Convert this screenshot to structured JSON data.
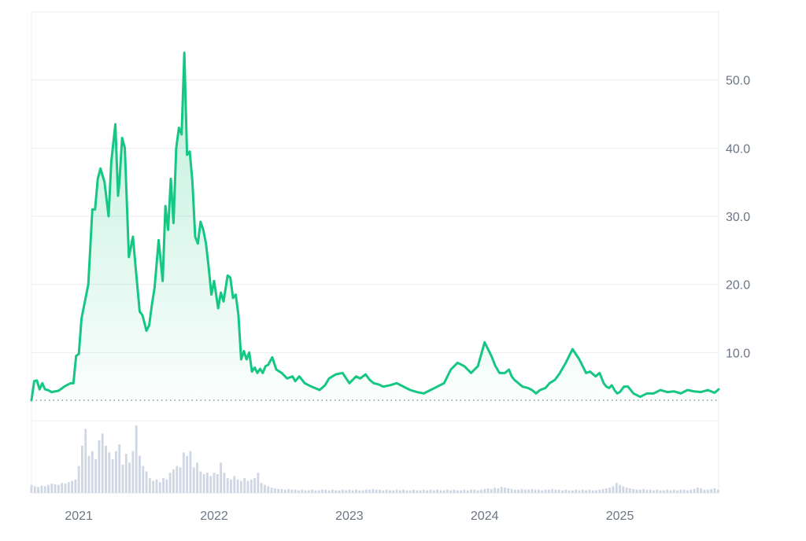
{
  "chart_data": {
    "type": "area",
    "title": "",
    "xlabel": "",
    "ylabel": "",
    "colors": {
      "line": "#16c784",
      "fill": "#16c784",
      "grid": "#e9ecf1",
      "volume": "#cfd6e4",
      "baseline": "#7a8090"
    },
    "ylim": [
      0,
      60
    ],
    "y_ticks": [
      {
        "value": 10,
        "label": "10.0"
      },
      {
        "value": 20,
        "label": "20.0"
      },
      {
        "value": 30,
        "label": "30.0"
      },
      {
        "value": 40,
        "label": "40.0"
      },
      {
        "value": 50,
        "label": "50.0"
      }
    ],
    "x_range": [
      2020.65,
      2025.73
    ],
    "x_ticks": [
      {
        "value": 2021.0,
        "label": "2021"
      },
      {
        "value": 2022.0,
        "label": "2022"
      },
      {
        "value": 2023.0,
        "label": "2023"
      },
      {
        "value": 2024.0,
        "label": "2024"
      },
      {
        "value": 2025.0,
        "label": "2025"
      }
    ],
    "reference_line": {
      "value": 3.0,
      "style": "dotted"
    },
    "grid": true,
    "legend": "none",
    "price": {
      "x": [
        2020.65,
        2020.67,
        2020.69,
        2020.71,
        2020.73,
        2020.75,
        2020.77,
        2020.8,
        2020.85,
        2020.9,
        2020.94,
        2020.96,
        2020.98,
        2021.0,
        2021.02,
        2021.04,
        2021.07,
        2021.1,
        2021.12,
        2021.14,
        2021.16,
        2021.19,
        2021.22,
        2021.24,
        2021.27,
        2021.29,
        2021.3,
        2021.32,
        2021.34,
        2021.37,
        2021.4,
        2021.42,
        2021.45,
        2021.47,
        2021.5,
        2021.52,
        2021.54,
        2021.56,
        2021.59,
        2021.62,
        2021.64,
        2021.66,
        2021.68,
        2021.7,
        2021.72,
        2021.74,
        2021.76,
        2021.78,
        2021.8,
        2021.82,
        2021.84,
        2021.86,
        2021.88,
        2021.9,
        2021.92,
        2021.94,
        2021.96,
        2021.98,
        2022.0,
        2022.03,
        2022.05,
        2022.07,
        2022.1,
        2022.12,
        2022.14,
        2022.16,
        2022.18,
        2022.2,
        2022.22,
        2022.24,
        2022.26,
        2022.28,
        2022.3,
        2022.32,
        2022.34,
        2022.36,
        2022.38,
        2022.4,
        2022.43,
        2022.46,
        2022.5,
        2022.54,
        2022.58,
        2022.6,
        2022.63,
        2022.67,
        2022.72,
        2022.78,
        2022.82,
        2022.85,
        2022.9,
        2022.95,
        2023.0,
        2023.05,
        2023.08,
        2023.12,
        2023.15,
        2023.18,
        2023.22,
        2023.25,
        2023.3,
        2023.35,
        2023.4,
        2023.45,
        2023.5,
        2023.55,
        2023.6,
        2023.65,
        2023.7,
        2023.75,
        2023.8,
        2023.85,
        2023.9,
        2023.95,
        2024.0,
        2024.05,
        2024.08,
        2024.11,
        2024.15,
        2024.18,
        2024.2,
        2024.22,
        2024.25,
        2024.28,
        2024.32,
        2024.35,
        2024.38,
        2024.41,
        2024.45,
        2024.48,
        2024.52,
        2024.55,
        2024.6,
        2024.65,
        2024.7,
        2024.75,
        2024.78,
        2024.82,
        2024.85,
        2024.88,
        2024.9,
        2024.92,
        2024.94,
        2024.96,
        2024.98,
        2025.0,
        2025.03,
        2025.06,
        2025.1,
        2025.15,
        2025.2,
        2025.25,
        2025.3,
        2025.35,
        2025.4,
        2025.45,
        2025.5,
        2025.55,
        2025.6,
        2025.65,
        2025.7,
        2025.73
      ],
      "y": [
        3.0,
        5.8,
        5.9,
        4.6,
        5.5,
        4.6,
        4.5,
        4.2,
        4.4,
        5.1,
        5.5,
        5.5,
        9.5,
        9.8,
        15.0,
        17.0,
        20.0,
        31.0,
        31.0,
        35.5,
        37.0,
        35.0,
        30.0,
        38.0,
        43.5,
        33.0,
        35.0,
        41.5,
        40.0,
        24.0,
        27.0,
        22.5,
        16.0,
        15.5,
        13.2,
        14.0,
        17.0,
        19.5,
        26.5,
        20.5,
        31.5,
        28.0,
        35.5,
        29.0,
        40.0,
        43.0,
        42.0,
        54.0,
        39.0,
        39.5,
        35.0,
        27.0,
        26.0,
        29.2,
        28.0,
        26.0,
        22.5,
        18.5,
        20.5,
        16.5,
        18.8,
        17.5,
        21.3,
        21.0,
        18.0,
        18.5,
        15.5,
        9.0,
        10.2,
        9.0,
        10.0,
        7.2,
        7.8,
        7.0,
        7.6,
        7.0,
        8.0,
        8.2,
        9.3,
        7.5,
        7.0,
        6.2,
        6.5,
        5.8,
        6.5,
        5.5,
        5.0,
        4.5,
        5.2,
        6.2,
        6.8,
        7.0,
        5.5,
        6.5,
        6.2,
        6.8,
        6.0,
        5.5,
        5.3,
        5.0,
        5.2,
        5.5,
        5.0,
        4.5,
        4.2,
        4.0,
        4.5,
        5.0,
        5.5,
        7.5,
        8.5,
        8.0,
        7.0,
        8.0,
        11.5,
        9.5,
        8.0,
        7.0,
        7.0,
        7.5,
        6.5,
        6.0,
        5.5,
        5.0,
        4.8,
        4.5,
        4.0,
        4.5,
        4.8,
        5.5,
        6.0,
        6.8,
        8.5,
        10.5,
        9.0,
        7.0,
        7.2,
        6.5,
        7.0,
        5.5,
        5.0,
        4.8,
        5.2,
        4.5,
        4.0,
        4.2,
        5.0,
        5.0,
        4.0,
        3.5,
        4.0,
        4.0,
        4.5,
        4.2,
        4.3,
        4.0,
        4.5,
        4.3,
        4.2,
        4.5,
        4.1,
        4.6
      ]
    },
    "volume": {
      "x": [
        2020.65,
        2020.675,
        2020.7,
        2020.725,
        2020.75,
        2020.775,
        2020.8,
        2020.825,
        2020.85,
        2020.875,
        2020.9,
        2020.925,
        2020.95,
        2020.975,
        2021.0,
        2021.025,
        2021.05,
        2021.075,
        2021.1,
        2021.125,
        2021.15,
        2021.175,
        2021.2,
        2021.225,
        2021.25,
        2021.275,
        2021.3,
        2021.325,
        2021.35,
        2021.375,
        2021.4,
        2021.425,
        2021.45,
        2021.475,
        2021.5,
        2021.525,
        2021.55,
        2021.575,
        2021.6,
        2021.625,
        2021.65,
        2021.675,
        2021.7,
        2021.725,
        2021.75,
        2021.775,
        2021.8,
        2021.825,
        2021.85,
        2021.875,
        2021.9,
        2021.925,
        2021.95,
        2021.975,
        2022.0,
        2022.025,
        2022.05,
        2022.075,
        2022.1,
        2022.125,
        2022.15,
        2022.175,
        2022.2,
        2022.225,
        2022.25,
        2022.275,
        2022.3,
        2022.325,
        2022.35,
        2022.375,
        2022.4,
        2022.425,
        2022.45,
        2022.475,
        2022.5,
        2022.525,
        2022.55,
        2022.575,
        2022.6,
        2022.625,
        2022.65,
        2022.675,
        2022.7,
        2022.725,
        2022.75,
        2022.775,
        2022.8,
        2022.825,
        2022.85,
        2022.875,
        2022.9,
        2022.925,
        2022.95,
        2022.975,
        2023.0,
        2023.025,
        2023.05,
        2023.075,
        2023.1,
        2023.125,
        2023.15,
        2023.175,
        2023.2,
        2023.225,
        2023.25,
        2023.275,
        2023.3,
        2023.325,
        2023.35,
        2023.375,
        2023.4,
        2023.425,
        2023.45,
        2023.475,
        2023.5,
        2023.525,
        2023.55,
        2023.575,
        2023.6,
        2023.625,
        2023.65,
        2023.675,
        2023.7,
        2023.725,
        2023.75,
        2023.775,
        2023.8,
        2023.825,
        2023.85,
        2023.875,
        2023.9,
        2023.925,
        2023.95,
        2023.975,
        2024.0,
        2024.025,
        2024.05,
        2024.075,
        2024.1,
        2024.125,
        2024.15,
        2024.175,
        2024.2,
        2024.225,
        2024.25,
        2024.275,
        2024.3,
        2024.325,
        2024.35,
        2024.375,
        2024.4,
        2024.425,
        2024.45,
        2024.475,
        2024.5,
        2024.525,
        2024.55,
        2024.575,
        2024.6,
        2024.625,
        2024.65,
        2024.675,
        2024.7,
        2024.725,
        2024.75,
        2024.775,
        2024.8,
        2024.825,
        2024.85,
        2024.875,
        2024.9,
        2024.925,
        2024.95,
        2024.975,
        2025.0,
        2025.025,
        2025.05,
        2025.075,
        2025.1,
        2025.125,
        2025.15,
        2025.175,
        2025.2,
        2025.225,
        2025.25,
        2025.275,
        2025.3,
        2025.325,
        2025.35,
        2025.375,
        2025.4,
        2025.425,
        2025.45,
        2025.475,
        2025.5,
        2025.525,
        2025.55,
        2025.575,
        2025.6,
        2025.625,
        2025.65,
        2025.675,
        2025.7,
        2025.725
      ],
      "values": [
        0.12,
        0.1,
        0.09,
        0.11,
        0.1,
        0.12,
        0.14,
        0.13,
        0.12,
        0.15,
        0.14,
        0.16,
        0.18,
        0.2,
        0.4,
        0.7,
        0.95,
        0.55,
        0.62,
        0.5,
        0.78,
        0.88,
        0.7,
        0.6,
        0.5,
        0.62,
        0.72,
        0.42,
        0.58,
        0.45,
        0.62,
        1.0,
        0.55,
        0.4,
        0.32,
        0.22,
        0.18,
        0.2,
        0.16,
        0.22,
        0.2,
        0.3,
        0.35,
        0.4,
        0.38,
        0.6,
        0.55,
        0.62,
        0.38,
        0.45,
        0.32,
        0.28,
        0.3,
        0.25,
        0.3,
        0.28,
        0.45,
        0.3,
        0.22,
        0.2,
        0.25,
        0.2,
        0.18,
        0.22,
        0.18,
        0.2,
        0.22,
        0.3,
        0.15,
        0.12,
        0.1,
        0.08,
        0.07,
        0.06,
        0.06,
        0.05,
        0.06,
        0.05,
        0.05,
        0.04,
        0.05,
        0.04,
        0.04,
        0.05,
        0.04,
        0.04,
        0.05,
        0.05,
        0.04,
        0.05,
        0.04,
        0.04,
        0.05,
        0.04,
        0.05,
        0.04,
        0.05,
        0.04,
        0.04,
        0.05,
        0.05,
        0.06,
        0.05,
        0.05,
        0.04,
        0.05,
        0.04,
        0.04,
        0.05,
        0.04,
        0.05,
        0.04,
        0.04,
        0.05,
        0.04,
        0.04,
        0.05,
        0.04,
        0.05,
        0.04,
        0.05,
        0.04,
        0.04,
        0.05,
        0.04,
        0.05,
        0.04,
        0.04,
        0.05,
        0.04,
        0.05,
        0.05,
        0.04,
        0.05,
        0.06,
        0.07,
        0.06,
        0.08,
        0.07,
        0.09,
        0.08,
        0.07,
        0.06,
        0.05,
        0.05,
        0.06,
        0.05,
        0.05,
        0.06,
        0.05,
        0.05,
        0.04,
        0.05,
        0.05,
        0.06,
        0.05,
        0.05,
        0.04,
        0.05,
        0.04,
        0.04,
        0.05,
        0.04,
        0.05,
        0.04,
        0.05,
        0.04,
        0.04,
        0.05,
        0.06,
        0.07,
        0.08,
        0.1,
        0.15,
        0.12,
        0.1,
        0.08,
        0.07,
        0.06,
        0.05,
        0.05,
        0.06,
        0.05,
        0.05,
        0.04,
        0.05,
        0.04,
        0.04,
        0.05,
        0.04,
        0.05,
        0.04,
        0.05,
        0.05,
        0.04,
        0.05,
        0.06,
        0.08,
        0.07,
        0.05,
        0.05,
        0.06,
        0.07,
        0.05
      ]
    }
  }
}
